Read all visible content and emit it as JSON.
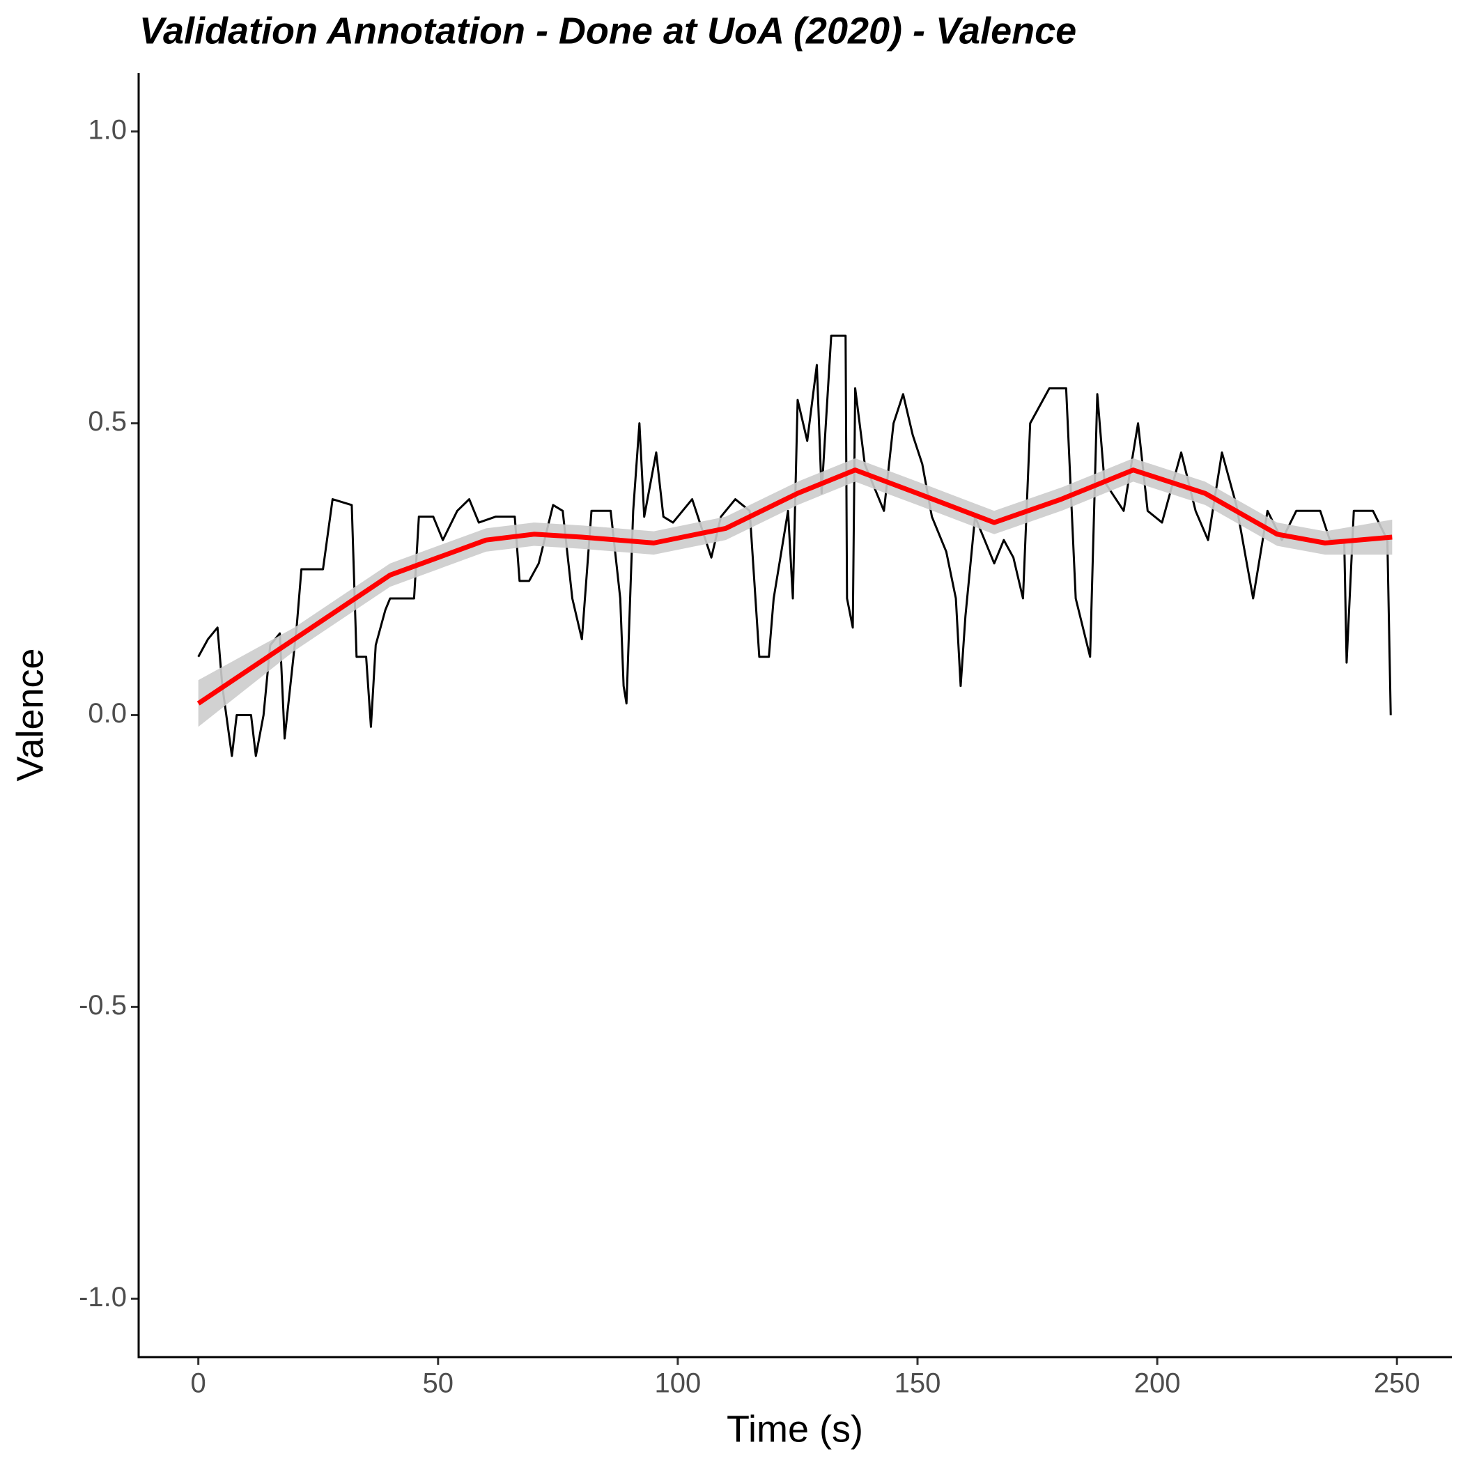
{
  "chart_data": {
    "type": "line",
    "title": "Validation Annotation - Done at UoA (2020) - Valence",
    "x_label": "Time (s)",
    "y_label": "Valence",
    "xlim": [
      -12.45,
      261.45
    ],
    "ylim": [
      -1.1,
      1.1
    ],
    "xticks": [
      0,
      50,
      100,
      150,
      200,
      250
    ],
    "yticks": [
      {
        "value": -1.0,
        "label": "-1.0"
      },
      -0.5,
      {
        "value": 0.0,
        "label": "0.0"
      },
      0.5,
      {
        "value": 1.0,
        "label": "1.0"
      }
    ],
    "grid": false,
    "series": [
      {
        "color": "#000000",
        "x": [
          0,
          2,
          4,
          5,
          7,
          8,
          11,
          12,
          13.6,
          15,
          17,
          18,
          20.5,
          21.5,
          26,
          28,
          32,
          33,
          35,
          36,
          37,
          39,
          40,
          45,
          46,
          49,
          51,
          54,
          56.5,
          58.5,
          62,
          66,
          67,
          69,
          71,
          74,
          76,
          78,
          80,
          82,
          84,
          86,
          88,
          88.7,
          89.3,
          90.7,
          92,
          93,
          95.5,
          97,
          99,
          103,
          107,
          109,
          112,
          115,
          117,
          119,
          120,
          123,
          124,
          125,
          127,
          129,
          130,
          132,
          135,
          135.3,
          136.5,
          137,
          139,
          143,
          145,
          147,
          149,
          151,
          153,
          156,
          158,
          159,
          160,
          162,
          164,
          166,
          168,
          170,
          172,
          173.5,
          177.5,
          181,
          183,
          186,
          187.5,
          189,
          193,
          196,
          198,
          201,
          205,
          208,
          210.6,
          213.5,
          216.5,
          220,
          223,
          226,
          229,
          234,
          236,
          239,
          239.5,
          241,
          245,
          248,
          248.7
        ],
        "values": [
          0.1,
          0.13,
          0.15,
          0.05,
          -0.07,
          0.0,
          0.0,
          -0.07,
          0.0,
          0.12,
          0.14,
          -0.04,
          0.15,
          0.25,
          0.25,
          0.37,
          0.36,
          0.1,
          0.1,
          -0.02,
          0.12,
          0.18,
          0.2,
          0.2,
          0.34,
          0.34,
          0.3,
          0.35,
          0.37,
          0.33,
          0.34,
          0.34,
          0.23,
          0.23,
          0.26,
          0.36,
          0.35,
          0.2,
          0.13,
          0.35,
          0.35,
          0.35,
          0.2,
          0.05,
          0.02,
          0.35,
          0.5,
          0.34,
          0.45,
          0.34,
          0.33,
          0.37,
          0.27,
          0.34,
          0.37,
          0.35,
          0.1,
          0.1,
          0.2,
          0.35,
          0.2,
          0.54,
          0.47,
          0.6,
          0.38,
          0.65,
          0.65,
          0.2,
          0.15,
          0.56,
          0.43,
          0.35,
          0.5,
          0.55,
          0.48,
          0.43,
          0.34,
          0.28,
          0.2,
          0.05,
          0.17,
          0.34,
          0.3,
          0.26,
          0.3,
          0.27,
          0.2,
          0.5,
          0.56,
          0.56,
          0.2,
          0.1,
          0.55,
          0.4,
          0.35,
          0.5,
          0.35,
          0.33,
          0.45,
          0.35,
          0.3,
          0.45,
          0.36,
          0.2,
          0.35,
          0.3,
          0.35,
          0.35,
          0.3,
          0.3,
          0.09,
          0.35,
          0.35,
          0.3,
          0.0
        ]
      },
      {
        "color": "#ff0000",
        "x": [
          0,
          20,
          40,
          50,
          60,
          70,
          80,
          95,
          110,
          125,
          137,
          150,
          166,
          180,
          195,
          210,
          225,
          235,
          249
        ],
        "values": [
          0.02,
          0.13,
          0.24,
          0.27,
          0.3,
          0.31,
          0.305,
          0.295,
          0.32,
          0.38,
          0.42,
          0.38,
          0.33,
          0.37,
          0.42,
          0.38,
          0.31,
          0.295,
          0.305
        ],
        "band": {
          "color": "#cccccc",
          "lower": [
            -0.02,
            0.11,
            0.22,
            0.25,
            0.28,
            0.29,
            0.285,
            0.275,
            0.3,
            0.36,
            0.4,
            0.36,
            0.31,
            0.35,
            0.4,
            0.36,
            0.29,
            0.275,
            0.275
          ],
          "upper": [
            0.06,
            0.15,
            0.26,
            0.29,
            0.32,
            0.33,
            0.325,
            0.315,
            0.34,
            0.4,
            0.44,
            0.4,
            0.35,
            0.39,
            0.44,
            0.4,
            0.33,
            0.315,
            0.335
          ]
        }
      }
    ]
  }
}
